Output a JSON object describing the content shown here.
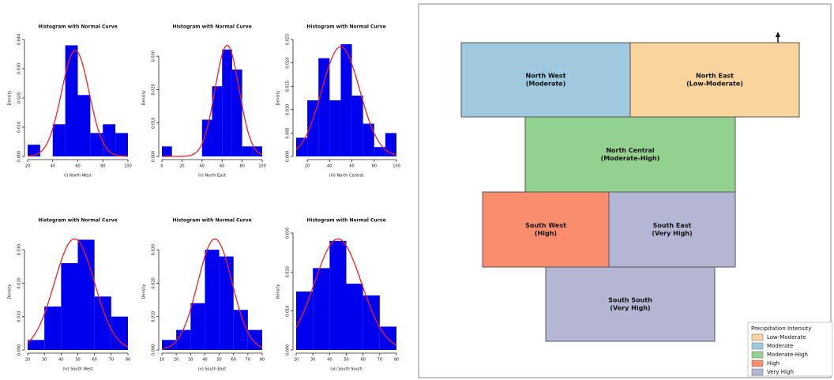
{
  "chart_data": [
    {
      "type": "histogram",
      "title": "Histogram with Normal Curve",
      "xlabel": "(i) North West",
      "ylabel": "Density",
      "color": "#0000ee",
      "curve_color": "#ee2222",
      "bins": [
        20,
        30,
        40,
        50,
        60,
        70,
        80,
        90,
        100
      ],
      "values": [
        0.004,
        0,
        0.011,
        0.038,
        0.021,
        0.008,
        0.011,
        0.008
      ],
      "normal_mean": 58,
      "normal_sd": 11,
      "xlim": [
        20,
        100
      ],
      "xticks": [
        20,
        40,
        60,
        80,
        100
      ],
      "ylim": [
        0,
        0.04
      ],
      "yticks": [
        {
          "value": 0,
          "label": "0.000"
        },
        {
          "value": 0.01,
          "label": "0.010"
        },
        {
          "value": 0.02,
          "label": "0.020"
        },
        {
          "value": 0.03,
          "label": "0.030"
        },
        {
          "value": 0.04,
          "label": "0.040"
        }
      ]
    },
    {
      "type": "histogram",
      "title": "Histogram with Normal Curve",
      "xlabel": "(ii) North East",
      "ylabel": "Density",
      "color": "#0000ee",
      "curve_color": "#ee2222",
      "bins": [
        0,
        10,
        20,
        30,
        40,
        50,
        60,
        70,
        80,
        90,
        100
      ],
      "values": [
        0.003,
        0,
        0,
        0,
        0.011,
        0.021,
        0.032,
        0.026,
        0.003,
        0.003
      ],
      "normal_mean": 65,
      "normal_sd": 12,
      "xlim": [
        0,
        100
      ],
      "xticks": [
        0,
        20,
        40,
        60,
        80,
        100
      ],
      "ylim": [
        0,
        0.035
      ],
      "yticks": [
        {
          "value": 0,
          "label": "0.000"
        },
        {
          "value": 0.01,
          "label": "0.010"
        },
        {
          "value": 0.02,
          "label": "0.020"
        },
        {
          "value": 0.03,
          "label": "0.030"
        }
      ]
    },
    {
      "type": "histogram",
      "title": "Histogram with Normal Curve",
      "xlabel": "(iii) North Central",
      "ylabel": "Density",
      "color": "#0000ee",
      "curve_color": "#ee2222",
      "bins": [
        10,
        20,
        30,
        40,
        50,
        60,
        70,
        80,
        90,
        100
      ],
      "values": [
        0.004,
        0.012,
        0.021,
        0.012,
        0.024,
        0.013,
        0.007,
        0.002,
        0.005
      ],
      "normal_mean": 50,
      "normal_sd": 17,
      "xlim": [
        10,
        100
      ],
      "xticks": [
        20,
        40,
        60,
        80,
        100
      ],
      "ylim": [
        0,
        0.025
      ],
      "yticks": [
        {
          "value": 0,
          "label": "0.000"
        },
        {
          "value": 0.005,
          "label": "0.005"
        },
        {
          "value": 0.01,
          "label": "0.010"
        },
        {
          "value": 0.015,
          "label": "0.015"
        },
        {
          "value": 0.02,
          "label": "0.020"
        },
        {
          "value": 0.025,
          "label": "0.025"
        }
      ]
    },
    {
      "type": "histogram",
      "title": "Histogram with Normal Curve",
      "xlabel": "(iv) South West",
      "ylabel": "Density",
      "color": "#0000ee",
      "curve_color": "#ee2222",
      "bins": [
        20,
        30,
        40,
        50,
        60,
        70,
        80
      ],
      "values": [
        0.003,
        0.013,
        0.026,
        0.033,
        0.016,
        0.01
      ],
      "normal_mean": 48,
      "normal_sd": 12,
      "xlim": [
        20,
        80
      ],
      "xticks": [
        20,
        30,
        40,
        50,
        60,
        70,
        80
      ],
      "ylim": [
        0,
        0.035
      ],
      "yticks": [
        {
          "value": 0,
          "label": "0.000"
        },
        {
          "value": 0.01,
          "label": "0.010"
        },
        {
          "value": 0.02,
          "label": "0.020"
        },
        {
          "value": 0.03,
          "label": "0.030"
        }
      ]
    },
    {
      "type": "histogram",
      "title": "Histogram with Normal Curve",
      "xlabel": "(v) South East",
      "ylabel": "Density",
      "color": "#0000ee",
      "curve_color": "#ee2222",
      "bins": [
        10,
        20,
        30,
        40,
        50,
        60,
        70,
        80
      ],
      "values": [
        0.003,
        0.006,
        0.014,
        0.03,
        0.028,
        0.012,
        0.006
      ],
      "normal_mean": 47,
      "normal_sd": 12,
      "xlim": [
        10,
        80
      ],
      "xticks": [
        10,
        20,
        30,
        40,
        50,
        60,
        70,
        80
      ],
      "ylim": [
        0,
        0.035
      ],
      "yticks": [
        {
          "value": 0,
          "label": "0.000"
        },
        {
          "value": 0.01,
          "label": "0.010"
        },
        {
          "value": 0.02,
          "label": "0.020"
        },
        {
          "value": 0.03,
          "label": "0.030"
        }
      ]
    },
    {
      "type": "histogram",
      "title": "Histogram with Normal Curve",
      "xlabel": "(vi) South South",
      "ylabel": "Density",
      "color": "#0000ee",
      "curve_color": "#ee2222",
      "bins": [
        20,
        30,
        40,
        50,
        60,
        70,
        80
      ],
      "values": [
        0.015,
        0.021,
        0.028,
        0.017,
        0.014,
        0.006
      ],
      "normal_mean": 45,
      "normal_sd": 14,
      "xlim": [
        20,
        80
      ],
      "xticks": [
        20,
        30,
        40,
        50,
        60,
        70,
        80
      ],
      "ylim": [
        0,
        0.03
      ],
      "yticks": [
        {
          "value": 0,
          "label": "0.000"
        },
        {
          "value": 0.01,
          "label": "0.010"
        },
        {
          "value": 0.02,
          "label": "0.020"
        },
        {
          "value": 0.03,
          "label": "0.030"
        }
      ]
    }
  ],
  "map": {
    "north": "N",
    "regions": [
      {
        "name": "North West",
        "label": "(Moderate)",
        "color": "#9ec9de"
      },
      {
        "name": "North East",
        "label": "(Low-Moderate)",
        "color": "#f9d49d"
      },
      {
        "name": "North Central",
        "label": "(Moderate-High)",
        "color": "#93d28e"
      },
      {
        "name": "South West",
        "label": "(High)",
        "color": "#f98d6e"
      },
      {
        "name": "South East",
        "label": "(Very High)",
        "color": "#b4b6d4"
      },
      {
        "name": "South South",
        "label": "(Very High)",
        "color": "#b4b6d4"
      }
    ],
    "legend": {
      "title": "Precipitation Intensity",
      "items": [
        {
          "label": "Low-Moderate",
          "color": "#f9d49d"
        },
        {
          "label": "Moderate",
          "color": "#9ec9de"
        },
        {
          "label": "Moderate-High",
          "color": "#93d28e"
        },
        {
          "label": "High",
          "color": "#f98d6e"
        },
        {
          "label": "Very High",
          "color": "#b4b6d4"
        }
      ]
    }
  }
}
